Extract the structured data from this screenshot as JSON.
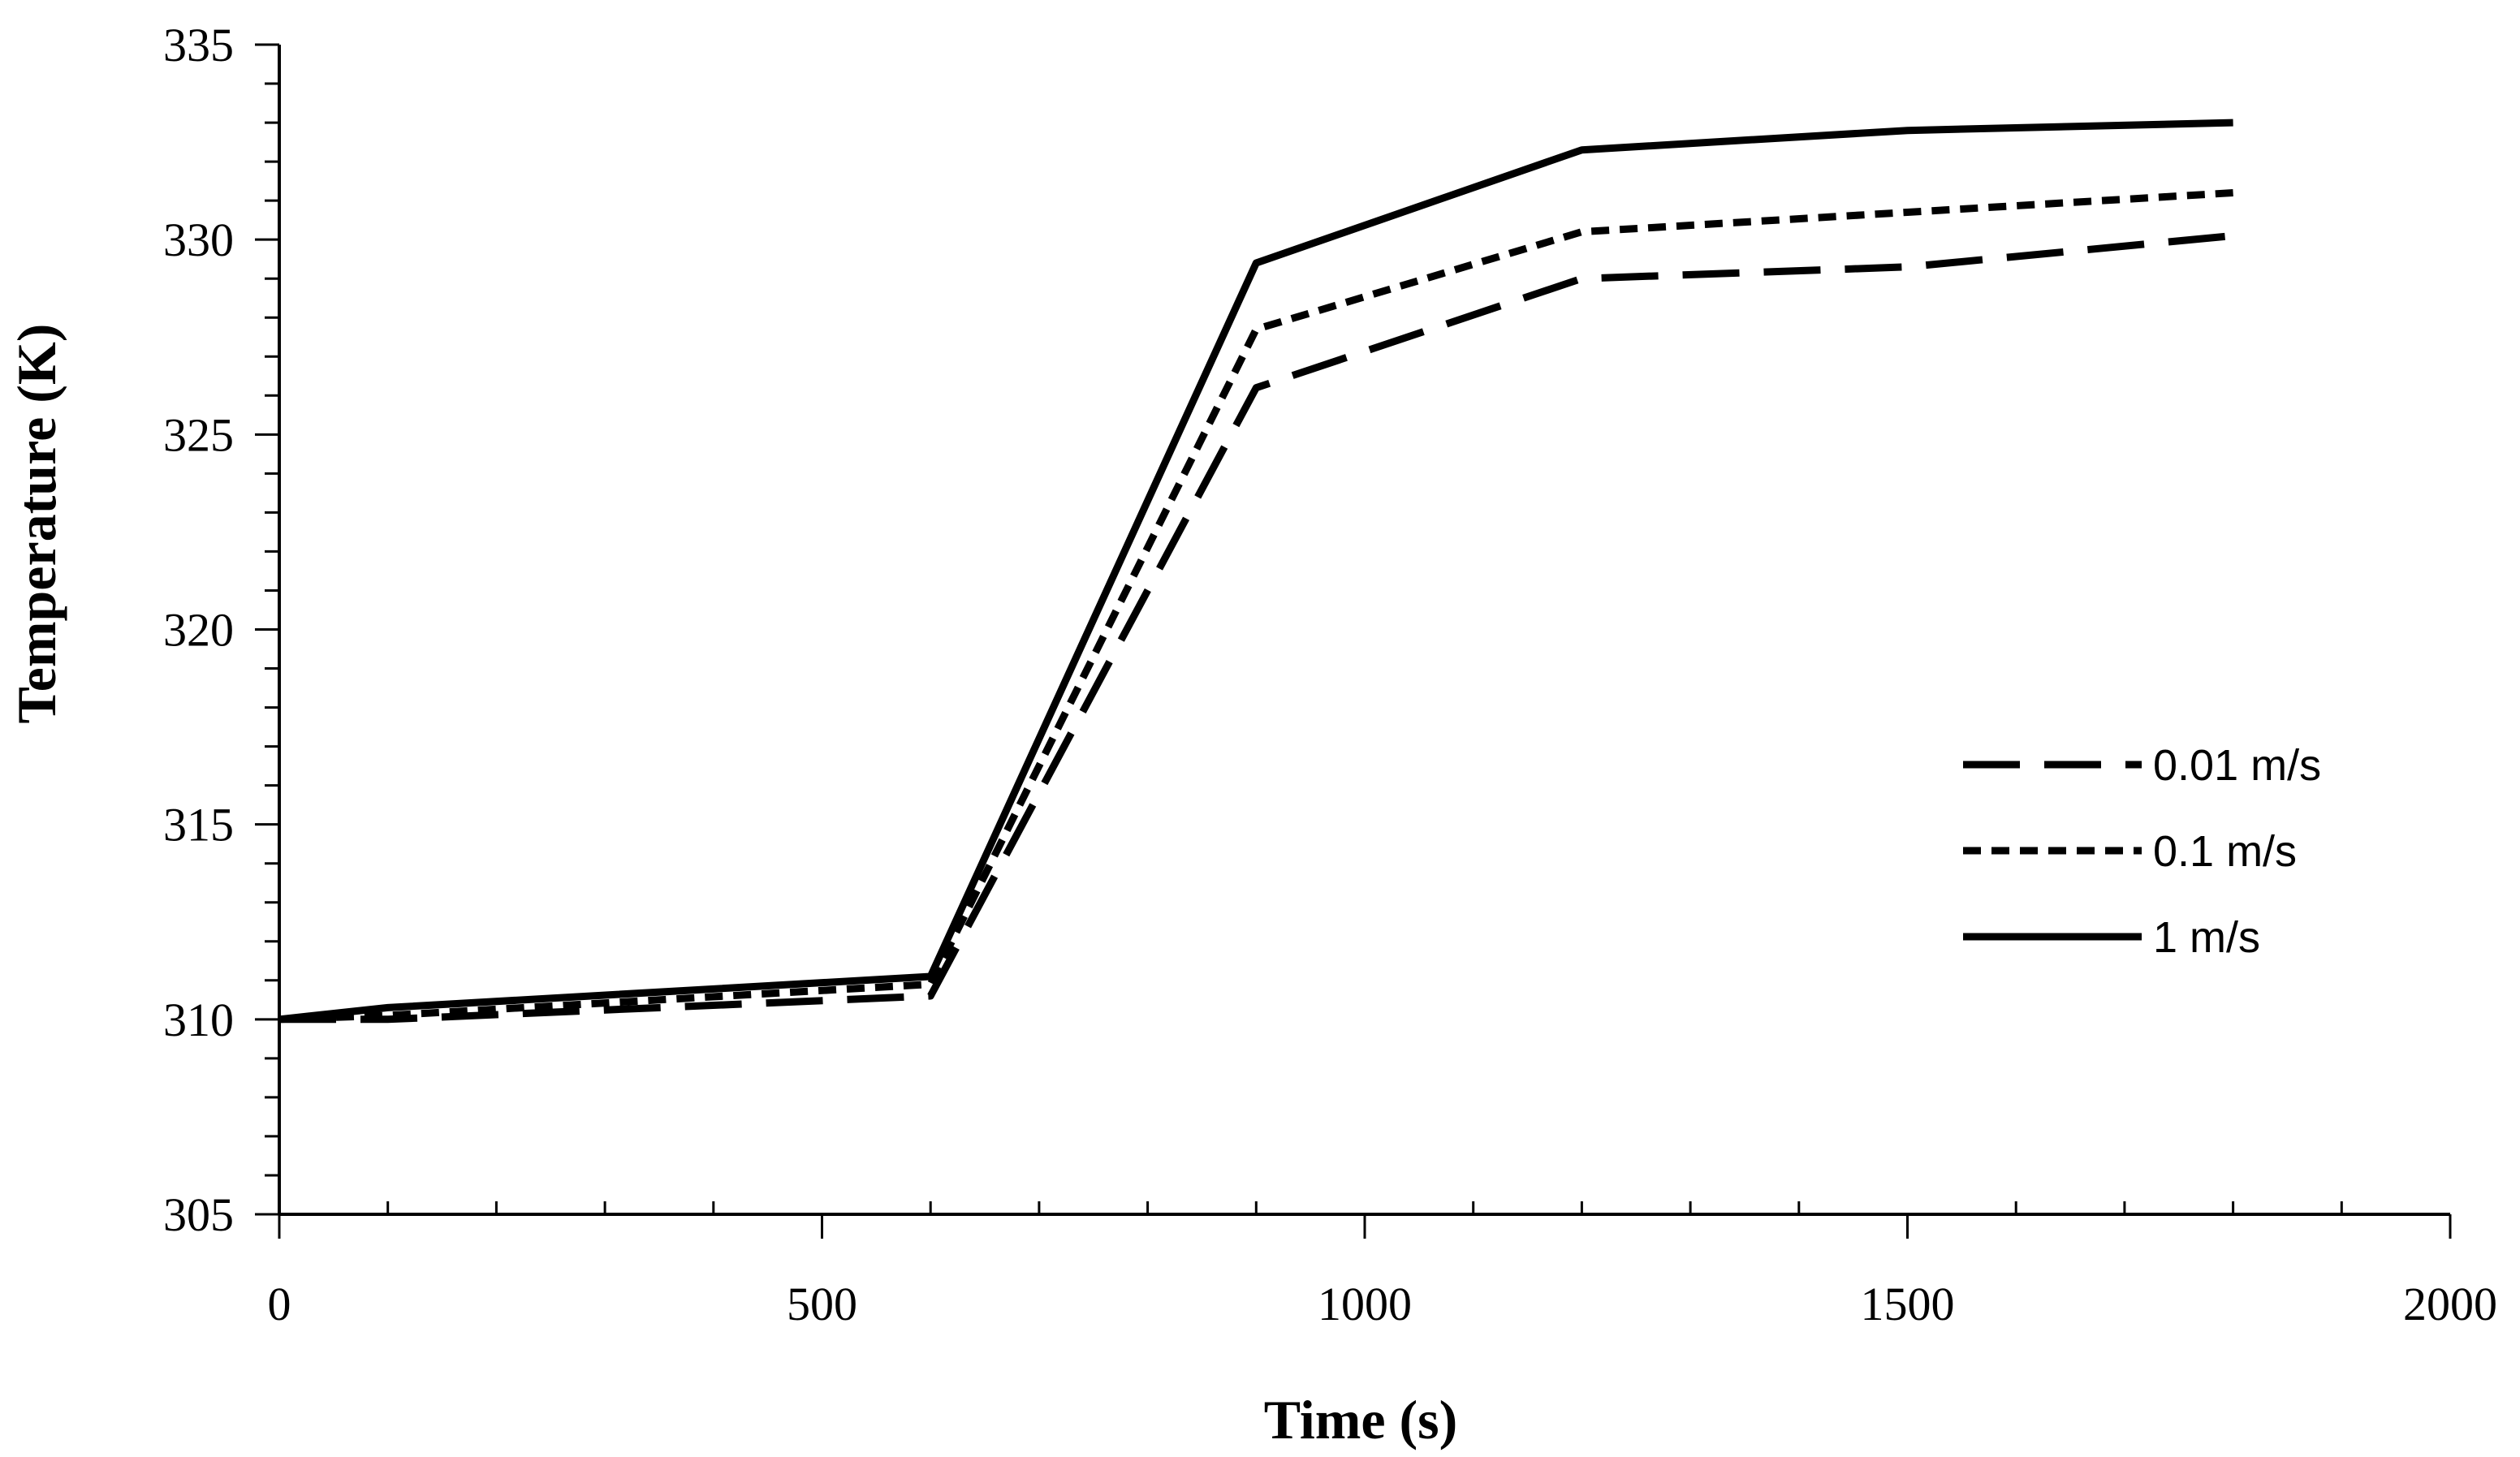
{
  "chart_data": {
    "type": "line",
    "title": "",
    "xlabel": "Time (s)",
    "ylabel": "Temperature  (K)",
    "xlim": [
      0,
      2000
    ],
    "ylim": [
      305,
      335
    ],
    "x_ticks": [
      "0",
      "500",
      "1000",
      "1500",
      "2000"
    ],
    "y_ticks": [
      "305",
      "310",
      "315",
      "320",
      "325",
      "330",
      "335"
    ],
    "grid": false,
    "legend_position": "right-middle",
    "series": [
      {
        "name": "0.01 m/s",
        "style": "long-dash",
        "x": [
          0,
          100,
          600,
          900,
          1200,
          1500,
          1800
        ],
        "y": [
          310.0,
          310.0,
          310.6,
          326.2,
          329.0,
          329.3,
          330.1
        ]
      },
      {
        "name": "0.1 m/s",
        "style": "short-dash",
        "x": [
          0,
          100,
          600,
          900,
          1200,
          1500,
          1800
        ],
        "y": [
          310.0,
          310.1,
          310.9,
          327.7,
          330.2,
          330.7,
          331.2
        ]
      },
      {
        "name": "1 m/s",
        "style": "solid",
        "x": [
          0,
          100,
          600,
          900,
          1200,
          1500,
          1800
        ],
        "y": [
          310.0,
          310.3,
          311.1,
          329.4,
          332.3,
          332.8,
          333.0
        ]
      }
    ],
    "colors": {
      "line": "#000000",
      "background": "#ffffff"
    }
  }
}
